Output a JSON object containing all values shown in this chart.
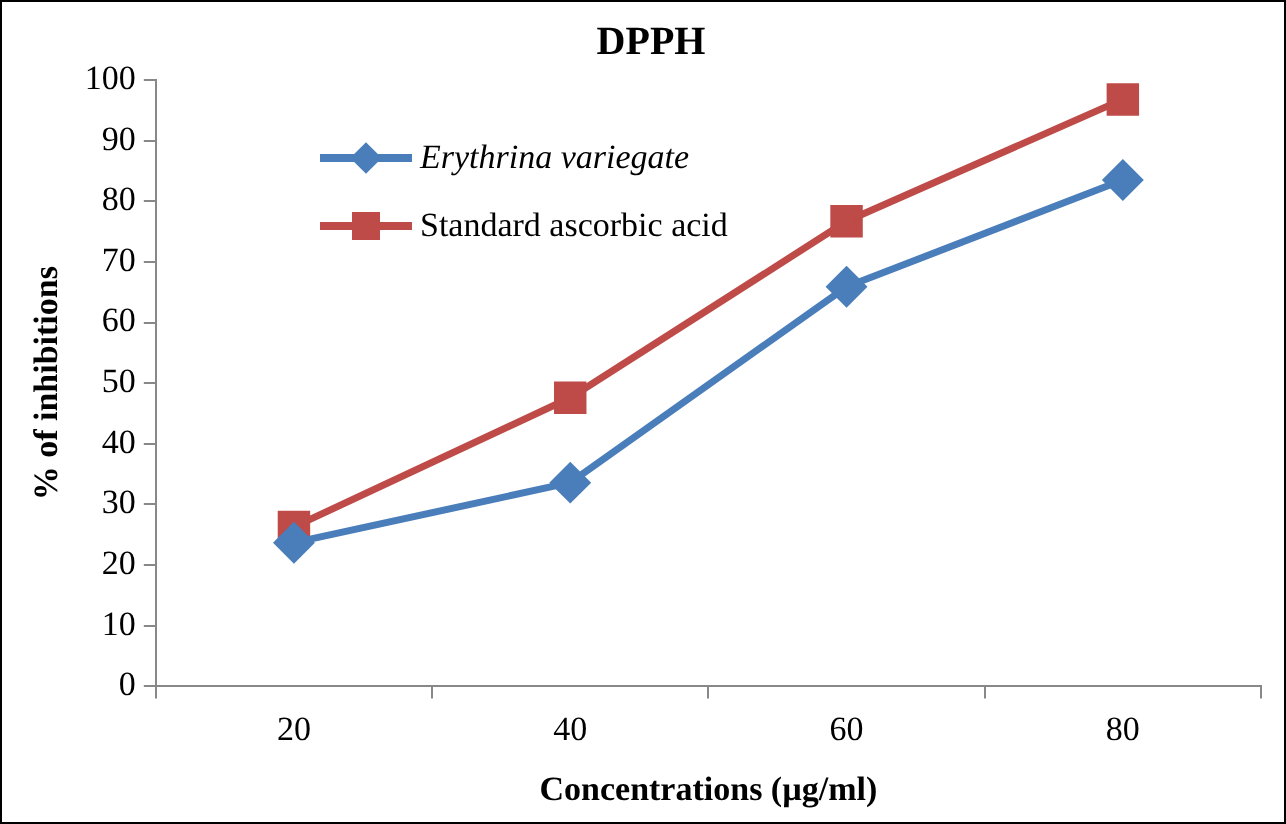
{
  "chart_data": {
    "type": "line",
    "title": "DPPH",
    "xlabel": "Concentrations (µg/ml)",
    "ylabel": "% of inhibitions",
    "categories": [
      "20",
      "40",
      "60",
      "80"
    ],
    "series": [
      {
        "name": "Erythrina variegate",
        "color": "#4a7ebb",
        "marker": "diamond",
        "values": [
          23.7,
          33.6,
          65.9,
          83.5
        ]
      },
      {
        "name": "Standard ascorbic acid",
        "color": "#be4b48",
        "marker": "square",
        "values": [
          26.3,
          47.6,
          76.7,
          96.8
        ]
      }
    ],
    "ylim": [
      0,
      100
    ],
    "yticks": [
      0,
      10,
      20,
      30,
      40,
      50,
      60,
      70,
      80,
      90,
      100
    ],
    "grid": false,
    "legend": "top left",
    "line_style": "solid"
  }
}
